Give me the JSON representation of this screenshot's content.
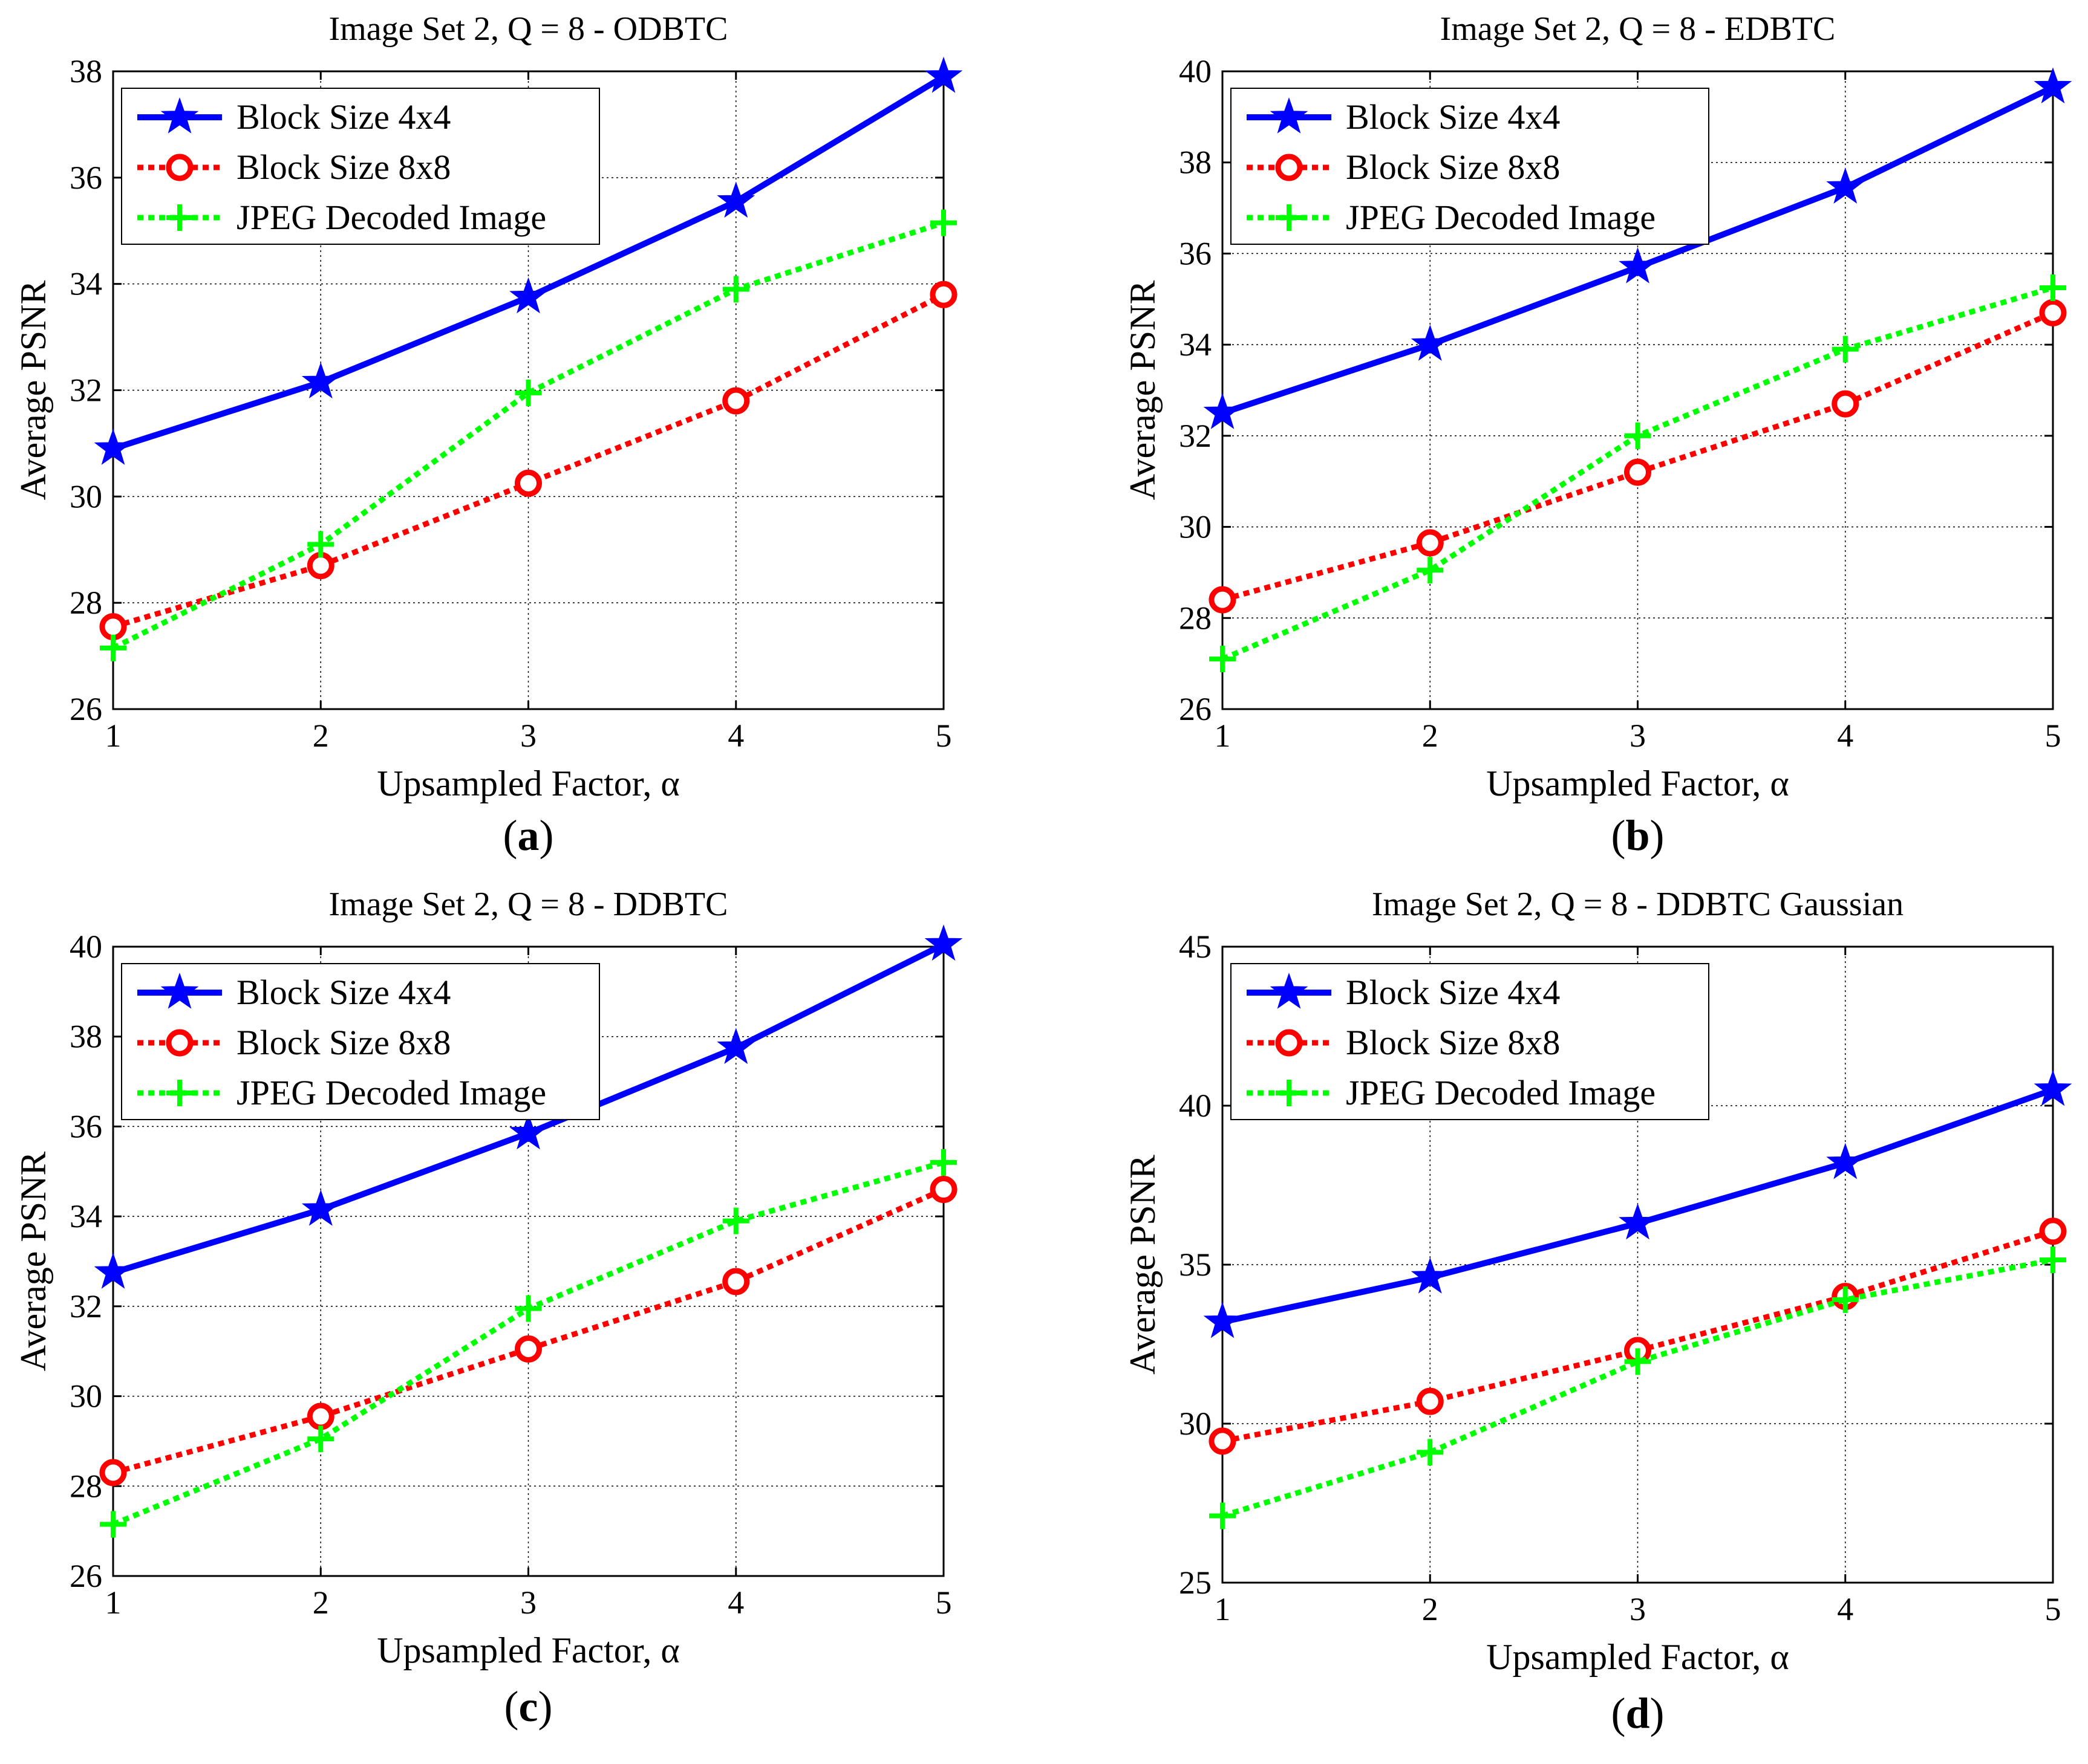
{
  "series_styles": [
    {
      "color": "#0000ff",
      "dash": "",
      "marker": "star"
    },
    {
      "color": "#ff0000",
      "dash": "dot",
      "marker": "circle"
    },
    {
      "color": "#00ff00",
      "dash": "dot",
      "marker": "plus"
    }
  ],
  "chart_data": [
    {
      "type": "line",
      "panel": "a",
      "title": "Image Set 2, Q = 8 - ODBTC",
      "xlabel": "Upsampled Factor, α",
      "ylabel": "Average PSNR",
      "x": [
        1,
        2,
        3,
        4,
        5
      ],
      "xlim": [
        1,
        5
      ],
      "ylim": [
        26,
        38
      ],
      "yticks": [
        26,
        28,
        30,
        32,
        34,
        36,
        38
      ],
      "grid": true,
      "legend_position": "top-left",
      "series": [
        {
          "name": "Block Size 4x4",
          "values": [
            30.9,
            32.15,
            33.75,
            35.55,
            37.9
          ]
        },
        {
          "name": "Block Size 8x8",
          "values": [
            27.55,
            28.7,
            30.25,
            31.8,
            33.8
          ]
        },
        {
          "name": "JPEG Decoded Image",
          "values": [
            27.15,
            29.1,
            31.95,
            33.9,
            35.15
          ]
        }
      ],
      "caption": "a"
    },
    {
      "type": "line",
      "panel": "b",
      "title": "Image Set 2, Q = 8 - EDBTC",
      "xlabel": "Upsampled Factor, α",
      "ylabel": "Average PSNR",
      "x": [
        1,
        2,
        3,
        4,
        5
      ],
      "xlim": [
        1,
        5
      ],
      "ylim": [
        26,
        40
      ],
      "yticks": [
        26,
        28,
        30,
        32,
        34,
        36,
        38,
        40
      ],
      "grid": true,
      "legend_position": "top-left",
      "series": [
        {
          "name": "Block Size 4x4",
          "values": [
            32.5,
            34.0,
            35.7,
            37.45,
            39.65
          ]
        },
        {
          "name": "Block Size 8x8",
          "values": [
            28.4,
            29.65,
            31.2,
            32.7,
            34.7
          ]
        },
        {
          "name": "JPEG Decoded Image",
          "values": [
            27.1,
            29.05,
            32.0,
            33.9,
            35.25
          ]
        }
      ],
      "caption": "b"
    },
    {
      "type": "line",
      "panel": "c",
      "title": "Image Set 2, Q = 8 - DDBTC",
      "xlabel": "Upsampled Factor, α",
      "ylabel": "Average PSNR",
      "x": [
        1,
        2,
        3,
        4,
        5
      ],
      "xlim": [
        1,
        5
      ],
      "ylim": [
        26,
        40
      ],
      "yticks": [
        26,
        28,
        30,
        32,
        34,
        36,
        38,
        40
      ],
      "grid": true,
      "legend_position": "top-left",
      "series": [
        {
          "name": "Block Size 4x4",
          "values": [
            32.75,
            34.15,
            35.85,
            37.75,
            40.05
          ]
        },
        {
          "name": "Block Size 8x8",
          "values": [
            28.3,
            29.55,
            31.05,
            32.55,
            34.6
          ]
        },
        {
          "name": "JPEG Decoded Image",
          "values": [
            27.15,
            29.05,
            31.95,
            33.9,
            35.2
          ]
        }
      ],
      "caption": "c"
    },
    {
      "type": "line",
      "panel": "d",
      "title": "Image Set 2, Q = 8 - DDBTC Gaussian",
      "xlabel": "Upsampled Factor, α",
      "ylabel": "Average PSNR",
      "x": [
        1,
        2,
        3,
        4,
        5
      ],
      "xlim": [
        1,
        5
      ],
      "ylim": [
        25,
        45
      ],
      "yticks": [
        25,
        30,
        35,
        40,
        45
      ],
      "grid": true,
      "legend_position": "top-left",
      "series": [
        {
          "name": "Block Size 4x4",
          "values": [
            33.2,
            34.6,
            36.3,
            38.2,
            40.5
          ]
        },
        {
          "name": "Block Size 8x8",
          "values": [
            29.45,
            30.7,
            32.3,
            34.0,
            36.05
          ]
        },
        {
          "name": "JPEG Decoded Image",
          "values": [
            27.1,
            29.1,
            31.95,
            33.9,
            35.15
          ]
        }
      ],
      "caption": "d"
    }
  ]
}
